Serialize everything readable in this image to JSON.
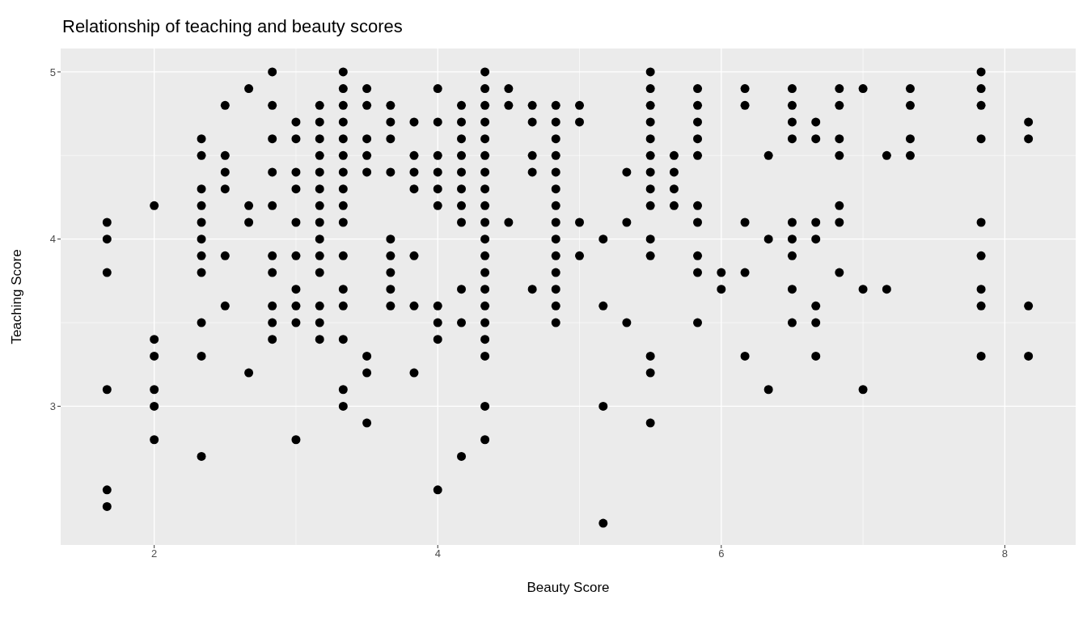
{
  "chart_data": {
    "type": "scatter",
    "title": "Relationship of teaching and beauty scores",
    "xlabel": "Beauty Score",
    "ylabel": "Teaching Score",
    "xlim": [
      1.34,
      8.5
    ],
    "xticks": [
      2,
      4,
      6,
      8
    ],
    "ylim": [
      2.17,
      5.14
    ],
    "yticks": [
      3,
      4,
      5
    ],
    "grid": true,
    "marker": "circle",
    "legend": false,
    "series": [
      {
        "color": "#000000",
        "x": [
          1.667,
          1.667,
          1.667,
          1.667,
          1.667,
          1.667,
          2,
          2,
          2,
          2,
          2,
          2,
          2.333,
          2.333,
          2.333,
          2.333,
          2.333,
          2.333,
          2.333,
          2.333,
          2.333,
          2.333,
          2.333,
          2.5,
          2.5,
          2.5,
          2.5,
          2.5,
          2.5,
          2.667,
          2.667,
          2.667,
          2.667,
          2.833,
          2.833,
          2.833,
          2.833,
          2.833,
          2.833,
          2.833,
          2.833,
          2.833,
          2.833,
          3,
          3,
          3,
          3,
          3,
          3,
          3,
          3,
          3,
          3,
          3.167,
          3.167,
          3.167,
          3.167,
          3.167,
          3.167,
          3.167,
          3.167,
          3.167,
          3.167,
          3.167,
          3.167,
          3.167,
          3.167,
          3.333,
          3.333,
          3.333,
          3.333,
          3.333,
          3.333,
          3.333,
          3.333,
          3.333,
          3.333,
          3.333,
          3.333,
          3.333,
          3.333,
          3.333,
          3.333,
          3.5,
          3.5,
          3.5,
          3.5,
          3.5,
          3.5,
          3.5,
          3.5,
          3.667,
          3.667,
          3.667,
          3.667,
          3.667,
          3.667,
          3.667,
          3.667,
          3.667,
          3.833,
          3.833,
          3.833,
          3.833,
          3.833,
          3.833,
          3.833,
          4,
          4,
          4,
          4,
          4,
          4,
          4,
          4,
          4,
          4,
          4.167,
          4.167,
          4.167,
          4.167,
          4.167,
          4.167,
          4.167,
          4.167,
          4.167,
          4.167,
          4.167,
          4.333,
          4.333,
          4.333,
          4.333,
          4.333,
          4.333,
          4.333,
          4.333,
          4.333,
          4.333,
          4.333,
          4.333,
          4.333,
          4.333,
          4.333,
          4.333,
          4.333,
          4.333,
          4.333,
          4.333,
          4.5,
          4.5,
          4.5,
          4.667,
          4.667,
          4.667,
          4.667,
          4.667,
          4.833,
          4.833,
          4.833,
          4.833,
          4.833,
          4.833,
          4.833,
          4.833,
          4.833,
          4.833,
          4.833,
          4.833,
          4.833,
          4.833,
          5,
          5,
          5,
          5,
          5.167,
          5.167,
          5.167,
          5.167,
          5.333,
          5.333,
          5.333,
          5.5,
          5.5,
          5.5,
          5.5,
          5.5,
          5.5,
          5.5,
          5.5,
          5.5,
          5.5,
          5.5,
          5.5,
          5.5,
          5.5,
          5.667,
          5.667,
          5.667,
          5.667,
          5.833,
          5.833,
          5.833,
          5.833,
          5.833,
          5.833,
          5.833,
          5.833,
          5.833,
          5.833,
          6,
          6,
          6.167,
          6.167,
          6.167,
          6.167,
          6.167,
          6.333,
          6.333,
          6.333,
          6.5,
          6.5,
          6.5,
          6.5,
          6.5,
          6.5,
          6.5,
          6.5,
          6.5,
          6.667,
          6.667,
          6.667,
          6.667,
          6.667,
          6.667,
          6.667,
          6.833,
          6.833,
          6.833,
          6.833,
          6.833,
          6.833,
          6.833,
          7,
          7,
          7,
          7.167,
          7.167,
          7.333,
          7.333,
          7.333,
          7.333,
          7.833,
          7.833,
          7.833,
          7.833,
          7.833,
          7.833,
          7.833,
          7.833,
          7.833,
          8.167,
          8.167,
          8.167,
          8.167
        ],
        "values": [
          4.1,
          4.0,
          3.8,
          3.1,
          2.5,
          2.4,
          4.2,
          3.4,
          3.3,
          3.1,
          3.0,
          2.8,
          4.6,
          4.5,
          4.3,
          4.2,
          4.1,
          4.0,
          3.9,
          3.8,
          3.5,
          3.3,
          2.7,
          4.8,
          4.5,
          4.4,
          4.3,
          3.9,
          3.6,
          4.9,
          4.2,
          4.1,
          3.2,
          5.0,
          4.8,
          4.6,
          4.4,
          4.2,
          3.9,
          3.8,
          3.6,
          3.5,
          3.4,
          4.7,
          4.6,
          4.4,
          4.3,
          4.1,
          3.9,
          3.7,
          3.6,
          3.5,
          2.8,
          4.8,
          4.7,
          4.6,
          4.5,
          4.4,
          4.3,
          4.2,
          4.1,
          4.0,
          3.9,
          3.8,
          3.6,
          3.5,
          3.4,
          5.0,
          4.9,
          4.8,
          4.7,
          4.6,
          4.5,
          4.4,
          4.3,
          4.2,
          4.1,
          3.9,
          3.7,
          3.6,
          3.4,
          3.1,
          3.0,
          4.9,
          4.8,
          4.6,
          4.5,
          4.4,
          3.3,
          3.2,
          2.9,
          4.8,
          4.7,
          4.6,
          4.4,
          4.0,
          3.9,
          3.8,
          3.7,
          3.6,
          4.7,
          4.5,
          4.4,
          4.3,
          3.9,
          3.6,
          3.2,
          4.9,
          4.7,
          4.5,
          4.4,
          4.3,
          4.2,
          3.6,
          3.5,
          3.4,
          2.5,
          4.8,
          4.7,
          4.6,
          4.5,
          4.4,
          4.3,
          4.2,
          4.1,
          3.7,
          3.5,
          2.7,
          5.0,
          4.9,
          4.8,
          4.7,
          4.6,
          4.5,
          4.4,
          4.3,
          4.2,
          4.1,
          4.0,
          3.9,
          3.8,
          3.7,
          3.6,
          3.5,
          3.4,
          3.3,
          3.0,
          2.8,
          4.9,
          4.8,
          4.1,
          4.8,
          4.7,
          4.5,
          4.4,
          3.7,
          4.8,
          4.7,
          4.6,
          4.5,
          4.4,
          4.3,
          4.2,
          4.1,
          4.0,
          3.9,
          3.8,
          3.7,
          3.6,
          3.5,
          4.8,
          4.7,
          4.1,
          3.9,
          4.0,
          3.6,
          3.0,
          2.3,
          4.4,
          4.1,
          3.5,
          5.0,
          4.9,
          4.8,
          4.7,
          4.6,
          4.5,
          4.4,
          4.3,
          4.2,
          4.0,
          3.9,
          3.3,
          3.2,
          2.9,
          4.5,
          4.4,
          4.3,
          4.2,
          4.9,
          4.8,
          4.7,
          4.6,
          4.5,
          4.2,
          4.1,
          3.9,
          3.8,
          3.5,
          3.8,
          3.7,
          4.9,
          4.8,
          4.1,
          3.8,
          3.3,
          4.5,
          4.0,
          3.1,
          4.9,
          4.8,
          4.7,
          4.6,
          4.1,
          4.0,
          3.9,
          3.7,
          3.5,
          4.7,
          4.6,
          4.1,
          4.0,
          3.6,
          3.5,
          3.3,
          4.9,
          4.8,
          4.6,
          4.5,
          4.2,
          4.1,
          3.8,
          4.9,
          3.7,
          3.1,
          4.5,
          3.7,
          4.9,
          4.8,
          4.6,
          4.5,
          5.0,
          4.9,
          4.8,
          4.6,
          4.1,
          3.9,
          3.7,
          3.6,
          3.3,
          4.7,
          4.6,
          3.6,
          3.3
        ]
      }
    ]
  }
}
